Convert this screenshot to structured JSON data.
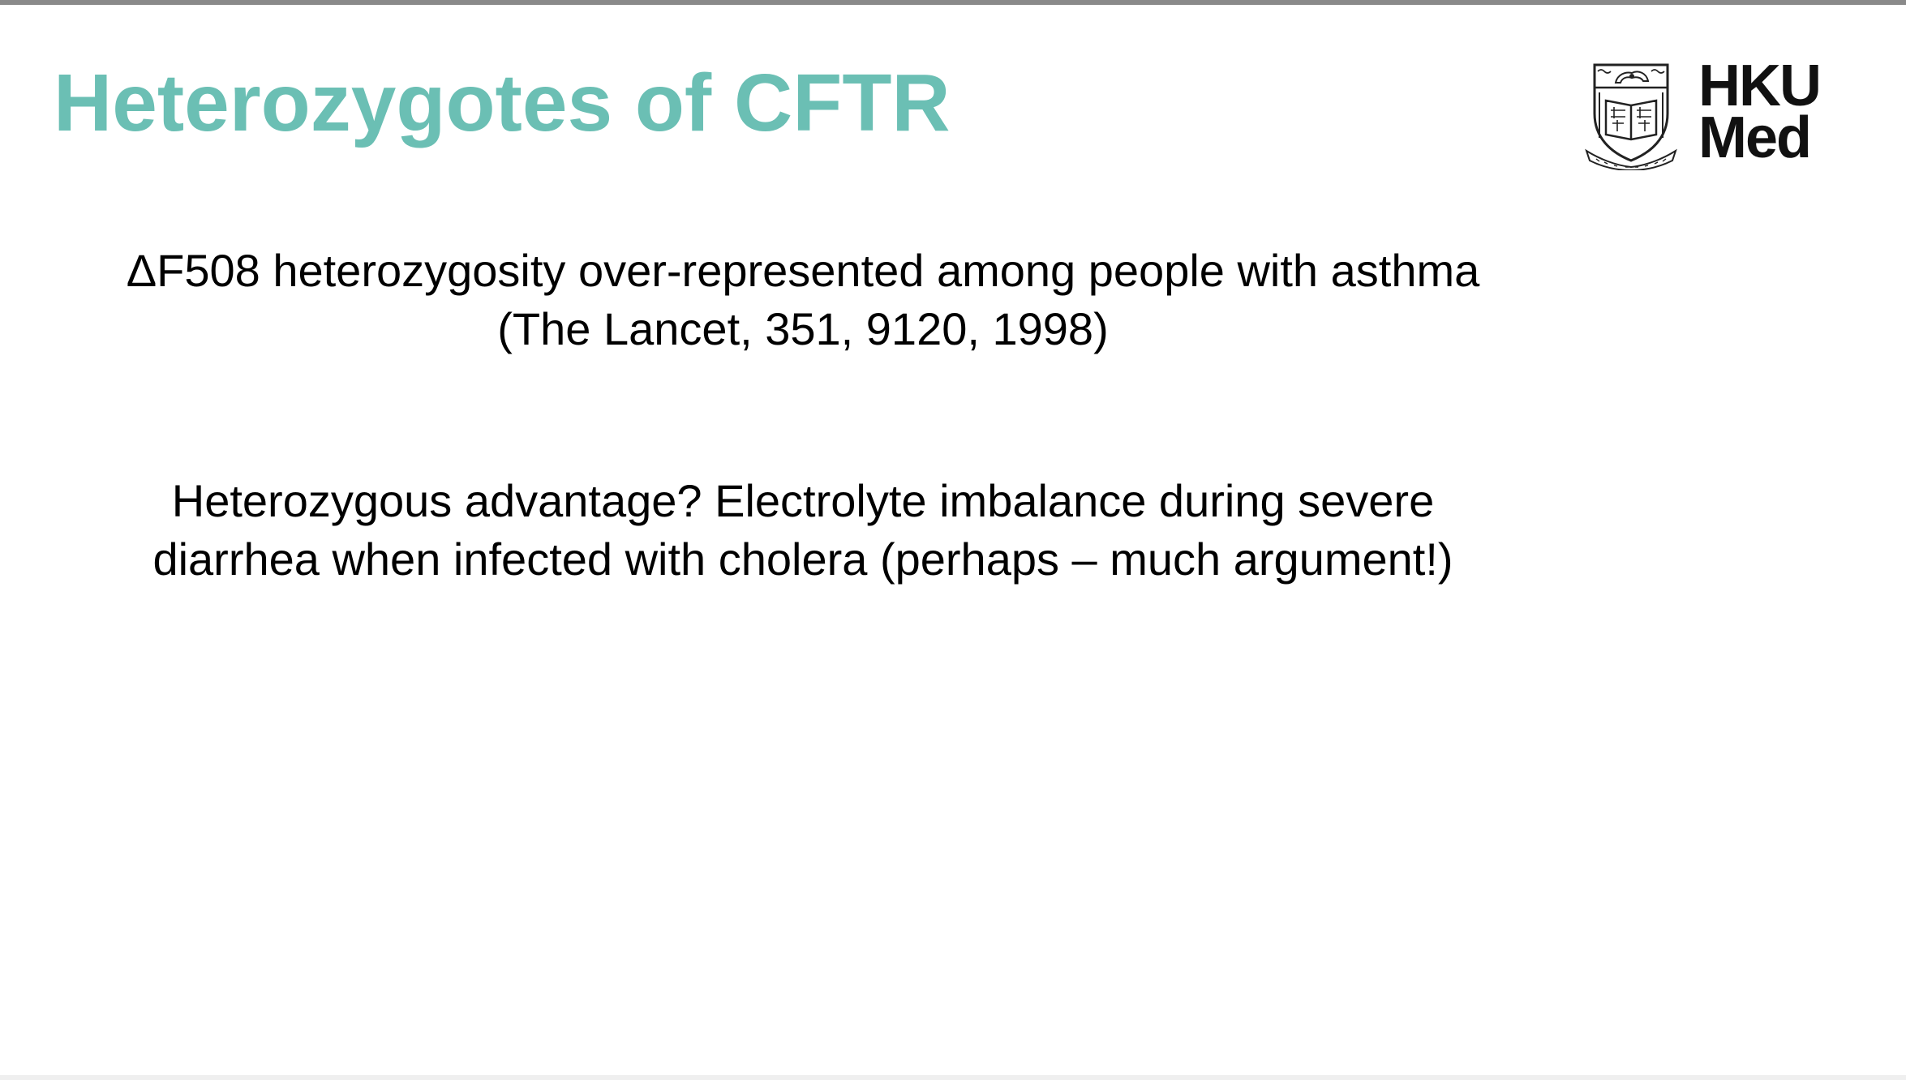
{
  "slide": {
    "title": "Heterozygotes of CFTR",
    "logo": {
      "line1": "HKU",
      "line2": "Med",
      "crest_icon": "university-crest-icon",
      "crest_motto": "SAPIENTIA ET VIRTUS"
    },
    "paragraphs": [
      {
        "line1": "ΔF508 heterozygosity over-represented among people with asthma",
        "line2": "(The Lancet, 351, 9120, 1998)"
      },
      {
        "line1": "Heterozygous advantage? Electrolyte imbalance during severe",
        "line2": "diarrhea when infected with cholera (perhaps – much argument!)"
      }
    ],
    "colors": {
      "title": "#6bbfb4",
      "text": "#000000",
      "top_rule": "#8a8a8a"
    }
  }
}
